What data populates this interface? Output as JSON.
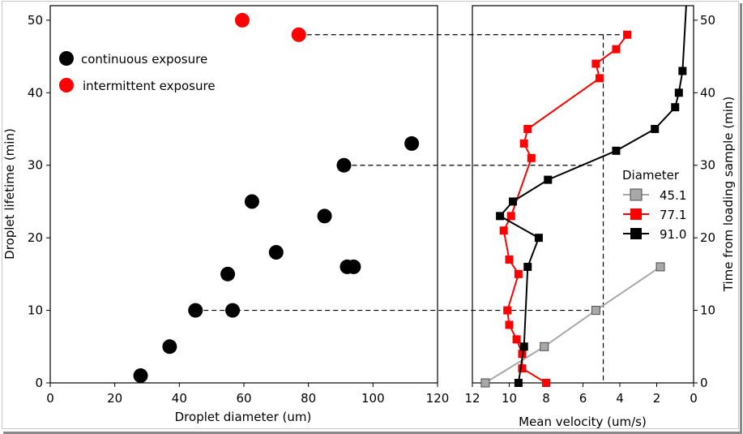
{
  "colors": {
    "black": "#000000",
    "red": "#ff0000",
    "gray": "#a8a8a8",
    "axis": "#000000"
  },
  "chart_data": [
    {
      "type": "scatter",
      "title": "",
      "xlabel": "Droplet diameter (um)",
      "ylabel": "Droplet lifetime (min)",
      "xlim": [
        0,
        120
      ],
      "ylim": [
        0,
        52
      ],
      "xticks": [
        0,
        20,
        40,
        60,
        80,
        100,
        120
      ],
      "yticks": [
        0,
        10,
        20,
        30,
        40,
        50
      ],
      "legend": {
        "placement": "top-left",
        "entries": [
          "continuous exposure",
          "intermittent exposure"
        ]
      },
      "series": [
        {
          "name": "continuous exposure",
          "color": "#000000",
          "points": [
            [
              28,
              1
            ],
            [
              37,
              5
            ],
            [
              45,
              10
            ],
            [
              56.5,
              10
            ],
            [
              55,
              15
            ],
            [
              62.5,
              25
            ],
            [
              70,
              18
            ],
            [
              85,
              23
            ],
            [
              91,
              30
            ],
            [
              92,
              16
            ],
            [
              94,
              16
            ],
            [
              112,
              33
            ]
          ]
        },
        {
          "name": "intermittent exposure",
          "color": "#ff0000",
          "points": [
            [
              59.5,
              50
            ],
            [
              77,
              48
            ]
          ]
        }
      ]
    },
    {
      "type": "line",
      "title": "",
      "xlabel": "Mean velocity (um/s)",
      "ylabel": "Time from loading sample (min)",
      "xlim": [
        12,
        0
      ],
      "ylim": [
        0,
        52
      ],
      "xticks": [
        12,
        10,
        8,
        6,
        4,
        2,
        0
      ],
      "yticks": [
        0,
        10,
        20,
        30,
        40,
        50
      ],
      "legend": {
        "placement": "center-right",
        "title": "Diameter",
        "entries": [
          "45.1",
          "77.1",
          "91.0"
        ]
      },
      "series": [
        {
          "name": "45.1",
          "color": "#a8a8a8",
          "points": [
            [
              11.3,
              0
            ],
            [
              8.1,
              5
            ],
            [
              5.3,
              10
            ],
            [
              1.8,
              16
            ]
          ]
        },
        {
          "name": "77.1",
          "color": "#ff0000",
          "points": [
            [
              8.0,
              0
            ],
            [
              9.3,
              2
            ],
            [
              9.3,
              4
            ],
            [
              9.6,
              6
            ],
            [
              10.0,
              8
            ],
            [
              10.1,
              10
            ],
            [
              9.5,
              15
            ],
            [
              10.0,
              17
            ],
            [
              10.3,
              21
            ],
            [
              9.9,
              23
            ],
            [
              8.8,
              31
            ],
            [
              9.2,
              33
            ],
            [
              9.0,
              35
            ],
            [
              5.1,
              42
            ],
            [
              5.3,
              44
            ],
            [
              4.2,
              46
            ],
            [
              3.6,
              48
            ]
          ]
        },
        {
          "name": "91.0",
          "color": "#000000",
          "points": [
            [
              9.5,
              0
            ],
            [
              9.2,
              5
            ],
            [
              9.0,
              16
            ],
            [
              8.4,
              20
            ],
            [
              10.5,
              23
            ],
            [
              9.8,
              25
            ],
            [
              7.9,
              28
            ],
            [
              4.2,
              32
            ],
            [
              2.1,
              35
            ],
            [
              1.0,
              38
            ],
            [
              0.8,
              40
            ],
            [
              0.6,
              43
            ],
            [
              0.4,
              52
            ]
          ]
        }
      ]
    }
  ]
}
